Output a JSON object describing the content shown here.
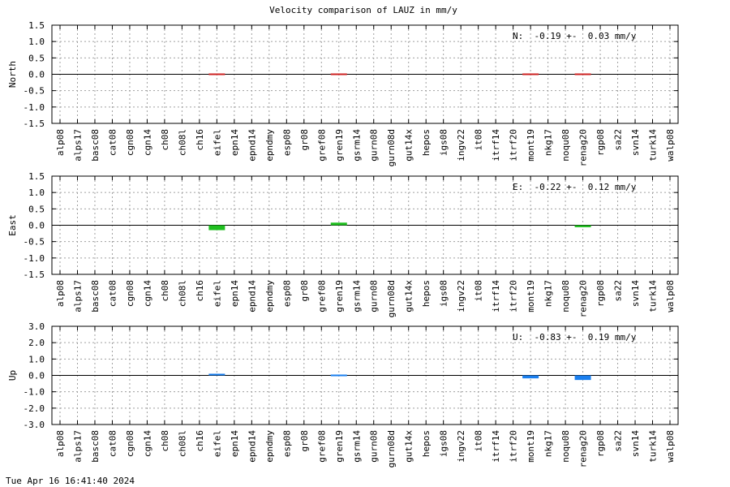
{
  "chart_data": {
    "title": "Velocity comparison of LAUZ in mm/y",
    "type": "bar",
    "categories": [
      "alp08",
      "alps17",
      "basc08",
      "cat08",
      "cgn08",
      "cgn14",
      "ch08",
      "ch08l",
      "ch16",
      "eifel",
      "epn14",
      "epnd14",
      "epndmy",
      "esp08",
      "gr08",
      "gref08",
      "gren19",
      "gsrm14",
      "gurn08",
      "gurn08d",
      "gut14x",
      "hepos",
      "igs08",
      "ingv22",
      "it08",
      "itrf14",
      "itrf20",
      "mont19",
      "nkg17",
      "noqu08",
      "renag20",
      "rgp08",
      "sa22",
      "svn14",
      "turk14",
      "walp08"
    ],
    "panels": [
      {
        "ylabel": "North",
        "color": "#cc2020",
        "ylim": [
          -1.5,
          1.5
        ],
        "yticks": [
          "1.5",
          "1.0",
          "0.5",
          "0.0",
          "-0.5",
          "-1.0",
          "-1.5"
        ],
        "stats": "N:  -0.19 +-  0.03 mm/y",
        "values": [
          null,
          null,
          null,
          null,
          null,
          null,
          null,
          null,
          null,
          -0.02,
          null,
          null,
          null,
          null,
          null,
          null,
          0.01,
          null,
          null,
          null,
          null,
          null,
          null,
          null,
          null,
          null,
          null,
          -0.03,
          null,
          null,
          -0.03,
          null,
          null,
          null,
          null,
          null
        ]
      },
      {
        "ylabel": "East",
        "color": "#1fbf1f",
        "ylim": [
          -1.5,
          1.5
        ],
        "yticks": [
          "1.5",
          "1.0",
          "0.5",
          "0.0",
          "-0.5",
          "-1.0",
          "-1.5"
        ],
        "stats": "E:  -0.22 +-  0.12 mm/y",
        "values": [
          null,
          null,
          null,
          null,
          null,
          null,
          null,
          null,
          null,
          -0.15,
          null,
          null,
          null,
          null,
          null,
          null,
          0.08,
          null,
          null,
          null,
          null,
          null,
          null,
          null,
          null,
          null,
          null,
          null,
          null,
          null,
          -0.06,
          null,
          null,
          null,
          null,
          null
        ]
      },
      {
        "ylabel": "Up",
        "color": "#1a7fef",
        "ylim": [
          -3.0,
          3.0
        ],
        "yticks": [
          "3.0",
          "2.0",
          "1.0",
          "0.0",
          "-1.0",
          "-2.0",
          "-3.0"
        ],
        "stats": "U:  -0.83 +-  0.19 mm/y",
        "values": [
          null,
          null,
          null,
          null,
          null,
          null,
          null,
          null,
          null,
          0.1,
          null,
          null,
          null,
          null,
          null,
          null,
          0.02,
          null,
          null,
          null,
          null,
          null,
          null,
          null,
          null,
          null,
          null,
          -0.18,
          null,
          null,
          -0.28,
          null,
          null,
          null,
          null,
          null
        ]
      }
    ]
  },
  "footer": {
    "timestamp": "Tue Apr 16 16:41:40 2024"
  }
}
